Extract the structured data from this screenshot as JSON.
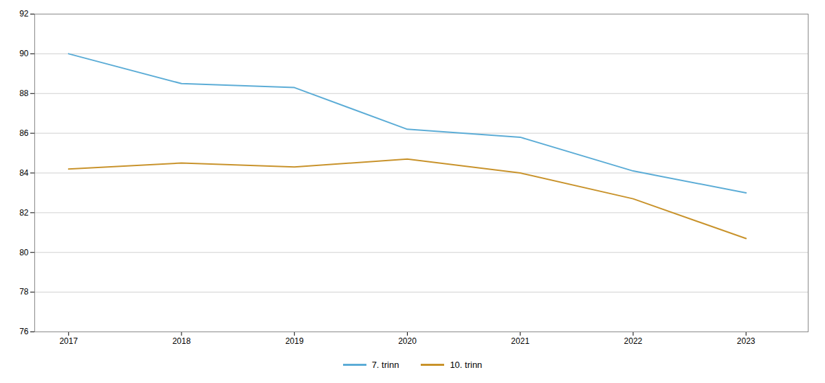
{
  "chart_data": {
    "type": "line",
    "x": [
      2017,
      2018,
      2019,
      2020,
      2021,
      2022,
      2023
    ],
    "series": [
      {
        "name": "7. trinn",
        "color": "#5BACD6",
        "values": [
          90.0,
          88.5,
          88.3,
          86.2,
          85.8,
          84.1,
          83.0
        ]
      },
      {
        "name": "10. trinn",
        "color": "#C8922A",
        "values": [
          84.2,
          84.5,
          84.3,
          84.7,
          84.0,
          82.7,
          80.7
        ]
      }
    ],
    "xlim": [
      2016.7,
      2023.55
    ],
    "xticks": [
      2017,
      2018,
      2019,
      2020,
      2021,
      2022,
      2023
    ],
    "ylim": [
      76,
      92
    ],
    "yticks": [
      76,
      78,
      80,
      82,
      84,
      86,
      88,
      90,
      92
    ],
    "grid": true,
    "legend": "bottom"
  }
}
